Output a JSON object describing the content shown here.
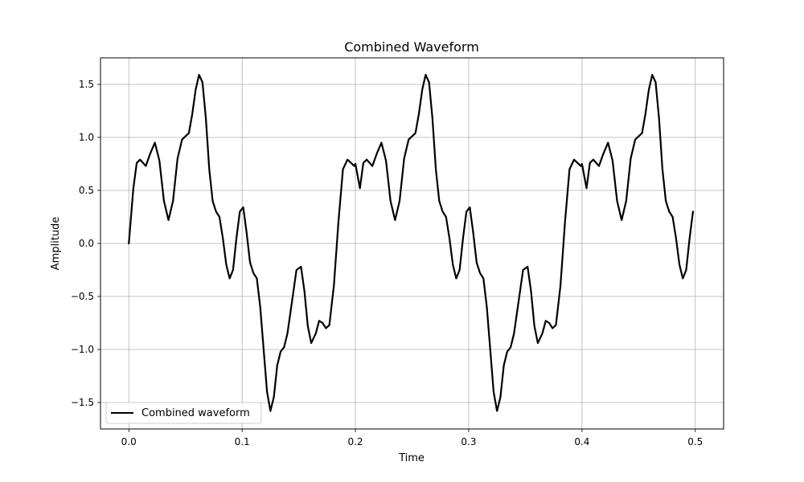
{
  "chart_data": {
    "type": "line",
    "title": "Combined Waveform",
    "xlabel": "Time",
    "ylabel": "Amplitude",
    "xlim": [
      -0.025,
      0.525
    ],
    "ylim": [
      -1.75,
      1.75
    ],
    "xticks": [
      0.0,
      0.1,
      0.2,
      0.3,
      0.4,
      0.5
    ],
    "xtick_labels": [
      "0.0",
      "0.1",
      "0.2",
      "0.3",
      "0.4",
      "0.5"
    ],
    "yticks": [
      -1.5,
      -1.0,
      -0.5,
      0.0,
      0.5,
      1.0,
      1.5
    ],
    "ytick_labels": [
      "−1.5",
      "−1.0",
      "−0.5",
      "0.0",
      "0.5",
      "1.0",
      "1.5"
    ],
    "grid": true,
    "legend": {
      "position": "lower-left",
      "entries": [
        "Combined waveform"
      ]
    },
    "series": [
      {
        "name": "Combined waveform",
        "color": "#000000",
        "x": [
          0.0,
          0.004,
          0.007,
          0.01,
          0.015,
          0.019,
          0.023,
          0.027,
          0.031,
          0.035,
          0.039,
          0.043,
          0.047,
          0.05,
          0.053,
          0.056,
          0.059,
          0.062,
          0.065,
          0.068,
          0.071,
          0.074,
          0.077,
          0.08,
          0.083,
          0.086,
          0.089,
          0.092,
          0.095,
          0.098,
          0.101,
          0.104,
          0.107,
          0.11,
          0.113,
          0.116,
          0.119,
          0.122,
          0.125,
          0.128,
          0.131,
          0.134,
          0.137,
          0.14,
          0.144,
          0.148,
          0.152,
          0.155,
          0.158,
          0.161,
          0.165,
          0.168,
          0.171,
          0.174,
          0.177,
          0.181,
          0.185,
          0.189,
          0.193,
          0.196,
          0.199,
          0.2
        ],
        "y": [
          0.0,
          0.52,
          0.76,
          0.79,
          0.73,
          0.85,
          0.95,
          0.78,
          0.4,
          0.22,
          0.4,
          0.8,
          0.98,
          1.01,
          1.04,
          1.22,
          1.45,
          1.59,
          1.52,
          1.18,
          0.7,
          0.4,
          0.3,
          0.25,
          0.05,
          -0.2,
          -0.33,
          -0.25,
          0.05,
          0.3,
          0.34,
          0.1,
          -0.18,
          -0.28,
          -0.33,
          -0.6,
          -1.0,
          -1.4,
          -1.58,
          -1.45,
          -1.15,
          -1.02,
          -0.98,
          -0.85,
          -0.55,
          -0.25,
          -0.22,
          -0.45,
          -0.78,
          -0.94,
          -0.85,
          -0.73,
          -0.75,
          -0.8,
          -0.77,
          -0.4,
          0.2,
          0.7,
          0.79,
          0.76,
          0.73,
          0.75
        ]
      }
    ]
  }
}
